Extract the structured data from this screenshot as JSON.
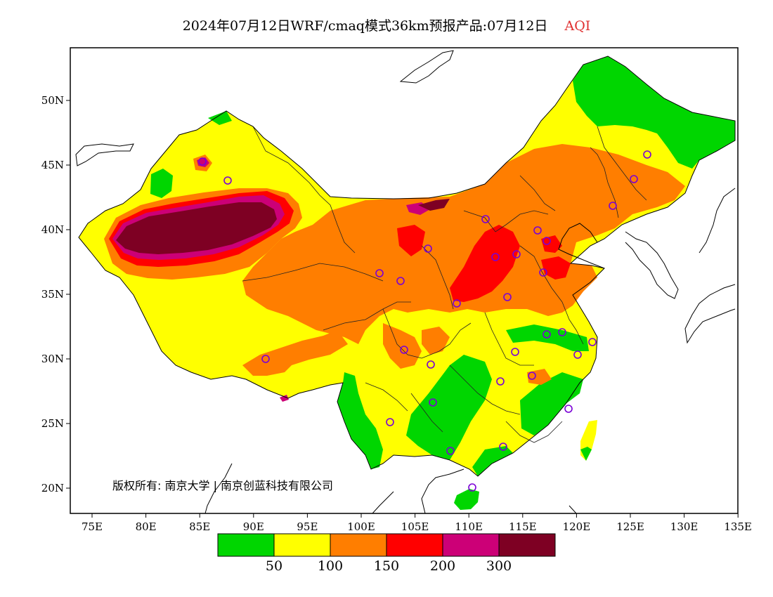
{
  "title": {
    "main": "2024年07月12日WRF/cmaq模式36km预报产品:07月12日",
    "field": "AQI"
  },
  "colors": {
    "good": "#00d600",
    "moderate": "#ffff00",
    "usg": "#ff7e00",
    "unhealthy": "#ff0000",
    "very_unhealthy": "#cc0077",
    "hazardous": "#7e0023",
    "station_marker": "#7a00d6",
    "title_field": "#e03030"
  },
  "axes": {
    "x_ticks": [
      "75E",
      "80E",
      "85E",
      "90E",
      "95E",
      "100E",
      "105E",
      "110E",
      "115E",
      "120E",
      "125E",
      "130E",
      "135E"
    ],
    "y_ticks": [
      "50N",
      "45N",
      "40N",
      "35N",
      "30N",
      "25N",
      "20N"
    ]
  },
  "legend": {
    "labels": [
      "50",
      "100",
      "150",
      "200",
      "300"
    ]
  },
  "copyright": "版权所有: 南京大学 | 南京创蓝科技有限公司"
}
